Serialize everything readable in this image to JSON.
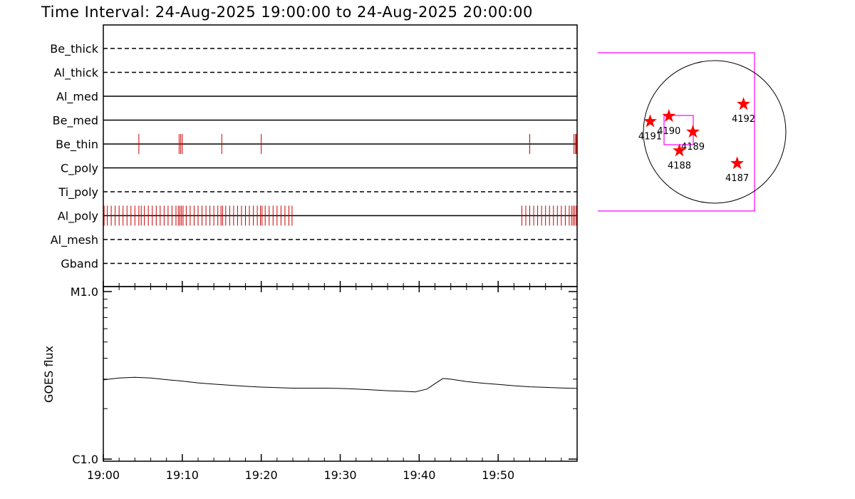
{
  "title": "Time Interval: 24-Aug-2025 19:00:00 to 24-Aug-2025 20:00:00",
  "chart_data": [
    {
      "type": "event-timeline",
      "x_range": [
        "19:00",
        "20:00"
      ],
      "x_tick_labels": [
        "19:00",
        "19:10",
        "19:20",
        "19:30",
        "19:40",
        "19:50"
      ],
      "x_tick_minutes": [
        0,
        10,
        20,
        30,
        40,
        50
      ],
      "rows": [
        {
          "name": "Be_thick",
          "style": "dashed",
          "events": []
        },
        {
          "name": "Al_thick",
          "style": "dashed",
          "events": []
        },
        {
          "name": "Al_med",
          "style": "solid",
          "events": []
        },
        {
          "name": "Be_med",
          "style": "solid",
          "events": []
        },
        {
          "name": "Be_thin",
          "style": "solid",
          "events": [
            4.5,
            9.6,
            9.8,
            10.0,
            15.0,
            20.0,
            54.0,
            59.6,
            59.8,
            60.0
          ]
        },
        {
          "name": "C_poly",
          "style": "solid",
          "events": []
        },
        {
          "name": "Ti_poly",
          "style": "dashed",
          "events": []
        },
        {
          "name": "Al_poly",
          "style": "solid",
          "events": [
            0.1,
            0.5,
            1.0,
            1.5,
            2.0,
            2.5,
            3.0,
            3.5,
            4.0,
            4.5,
            4.8,
            5.2,
            5.7,
            6.2,
            6.7,
            7.2,
            7.7,
            8.2,
            8.7,
            9.2,
            9.5,
            9.7,
            9.9,
            10.1,
            10.5,
            11.0,
            11.5,
            12.0,
            12.5,
            13.0,
            13.5,
            14.0,
            14.5,
            14.9,
            15.1,
            15.5,
            16.0,
            16.5,
            17.0,
            17.5,
            18.0,
            18.5,
            19.0,
            19.5,
            19.9,
            20.1,
            20.5,
            21.0,
            21.5,
            22.0,
            22.5,
            23.0,
            23.5,
            23.9,
            53.0,
            53.5,
            54.0,
            54.5,
            55.0,
            55.5,
            56.0,
            56.5,
            57.0,
            57.5,
            58.0,
            58.5,
            59.0,
            59.3,
            59.5,
            59.7,
            59.9
          ]
        },
        {
          "name": "Al_mesh",
          "style": "dashed",
          "events": []
        },
        {
          "name": "Gband",
          "style": "dashed",
          "events": []
        }
      ],
      "event_color": "#cc0000"
    },
    {
      "type": "line",
      "ylabel": "GOES flux",
      "y_scale": "log",
      "ylim": [
        1e-06,
        1e-05
      ],
      "y_tick_labels": [
        "C1.0",
        "M1.0"
      ],
      "x_range_minutes": [
        0,
        60
      ],
      "series": [
        {
          "x": [
            0,
            2,
            4,
            6,
            8,
            10,
            12,
            14,
            16,
            18,
            20,
            22,
            24,
            26,
            28,
            30,
            32,
            34,
            36,
            38,
            39.5,
            41,
            42,
            43,
            44,
            46,
            48,
            50,
            52,
            54,
            56,
            58,
            60
          ],
          "y": [
            2.97e-06,
            3.05e-06,
            3.08e-06,
            3.05e-06,
            2.98e-06,
            2.92e-06,
            2.85e-06,
            2.8e-06,
            2.76e-06,
            2.72e-06,
            2.69e-06,
            2.67e-06,
            2.65e-06,
            2.65e-06,
            2.65e-06,
            2.64e-06,
            2.62e-06,
            2.59e-06,
            2.56e-06,
            2.54e-06,
            2.52e-06,
            2.62e-06,
            2.82e-06,
            3.03e-06,
            3e-06,
            2.9e-06,
            2.84e-06,
            2.79e-06,
            2.74e-06,
            2.7e-06,
            2.68e-06,
            2.66e-06,
            2.64e-06
          ]
        }
      ]
    },
    {
      "type": "solar-disk-map",
      "active_regions": [
        {
          "label": "4192",
          "x_arcsec": 385,
          "y_arcsec": 370
        },
        {
          "label": "4191",
          "x_arcsec": -860,
          "y_arcsec": 140
        },
        {
          "label": "4190",
          "x_arcsec": -610,
          "y_arcsec": 210
        },
        {
          "label": "4189",
          "x_arcsec": -290,
          "y_arcsec": 0
        },
        {
          "label": "4188",
          "x_arcsec": -470,
          "y_arcsec": -250
        },
        {
          "label": "4187",
          "x_arcsec": 300,
          "y_arcsec": -420
        }
      ],
      "marker_color": "#ff0000",
      "box_color": "#ff00ff"
    }
  ]
}
